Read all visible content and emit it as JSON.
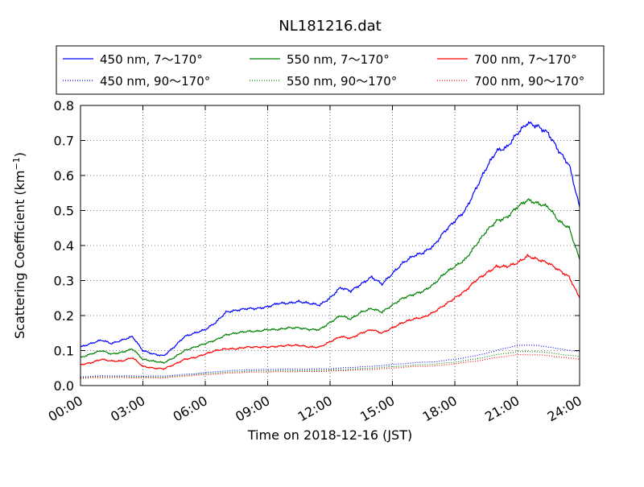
{
  "chart_data": {
    "type": "line",
    "title": "NL181216.dat",
    "xlabel": "Time on 2018-12-16 (JST)",
    "ylabel": "Scattering Coefficient (km",
    "ylabel_sup": "−1",
    "ylabel_close": ")",
    "xlim": [
      0,
      24
    ],
    "ylim": [
      0.0,
      0.8
    ],
    "grid": true,
    "legend_position": "top",
    "x_ticks": [
      {
        "value": 0,
        "label": "00:00"
      },
      {
        "value": 3,
        "label": "03:00"
      },
      {
        "value": 6,
        "label": "06:00"
      },
      {
        "value": 9,
        "label": "09:00"
      },
      {
        "value": 12,
        "label": "12:00"
      },
      {
        "value": 15,
        "label": "15:00"
      },
      {
        "value": 18,
        "label": "18:00"
      },
      {
        "value": 21,
        "label": "21:00"
      },
      {
        "value": 24,
        "label": "24:00"
      }
    ],
    "y_ticks": [
      {
        "value": 0.0,
        "label": "0.0"
      },
      {
        "value": 0.1,
        "label": "0.1"
      },
      {
        "value": 0.2,
        "label": "0.2"
      },
      {
        "value": 0.3,
        "label": "0.3"
      },
      {
        "value": 0.4,
        "label": "0.4"
      },
      {
        "value": 0.5,
        "label": "0.5"
      },
      {
        "value": 0.6,
        "label": "0.6"
      },
      {
        "value": 0.7,
        "label": "0.7"
      },
      {
        "value": 0.8,
        "label": "0.8"
      }
    ],
    "series": [
      {
        "name": "450 nm, 7～170°",
        "color": "#0000ff",
        "style": "solid",
        "x": [
          0,
          0.5,
          1,
          1.5,
          2,
          2.5,
          3,
          3.5,
          4,
          4.5,
          5,
          5.5,
          6,
          6.5,
          7,
          7.5,
          8,
          8.5,
          9,
          9.5,
          10,
          10.5,
          11,
          11.5,
          12,
          12.5,
          13,
          13.5,
          14,
          14.5,
          15,
          15.5,
          16,
          16.5,
          17,
          17.5,
          18,
          18.5,
          19,
          19.5,
          20,
          20.5,
          21,
          21.5,
          22,
          22.5,
          23,
          23.5,
          24
        ],
        "y": [
          0.11,
          0.12,
          0.13,
          0.12,
          0.13,
          0.14,
          0.1,
          0.09,
          0.085,
          0.11,
          0.14,
          0.15,
          0.16,
          0.18,
          0.21,
          0.215,
          0.22,
          0.22,
          0.225,
          0.235,
          0.235,
          0.24,
          0.235,
          0.23,
          0.25,
          0.28,
          0.27,
          0.29,
          0.31,
          0.29,
          0.32,
          0.35,
          0.37,
          0.38,
          0.4,
          0.44,
          0.47,
          0.5,
          0.56,
          0.62,
          0.67,
          0.68,
          0.72,
          0.75,
          0.74,
          0.72,
          0.67,
          0.63,
          0.51
        ]
      },
      {
        "name": "550 nm, 7～170°",
        "color": "#008000",
        "style": "solid",
        "x": [
          0,
          0.5,
          1,
          1.5,
          2,
          2.5,
          3,
          3.5,
          4,
          4.5,
          5,
          5.5,
          6,
          6.5,
          7,
          7.5,
          8,
          8.5,
          9,
          9.5,
          10,
          10.5,
          11,
          11.5,
          12,
          12.5,
          13,
          13.5,
          14,
          14.5,
          15,
          15.5,
          16,
          16.5,
          17,
          17.5,
          18,
          18.5,
          19,
          19.5,
          20,
          20.5,
          21,
          21.5,
          22,
          22.5,
          23,
          23.5,
          24
        ],
        "y": [
          0.08,
          0.09,
          0.1,
          0.09,
          0.095,
          0.105,
          0.075,
          0.07,
          0.065,
          0.08,
          0.1,
          0.11,
          0.12,
          0.13,
          0.145,
          0.15,
          0.155,
          0.155,
          0.16,
          0.16,
          0.165,
          0.165,
          0.16,
          0.16,
          0.18,
          0.2,
          0.19,
          0.21,
          0.22,
          0.21,
          0.23,
          0.25,
          0.26,
          0.27,
          0.29,
          0.32,
          0.34,
          0.36,
          0.4,
          0.44,
          0.47,
          0.48,
          0.51,
          0.53,
          0.52,
          0.51,
          0.47,
          0.45,
          0.36
        ]
      },
      {
        "name": "700 nm, 7～170°",
        "color": "#ff0000",
        "style": "solid",
        "x": [
          0,
          0.5,
          1,
          1.5,
          2,
          2.5,
          3,
          3.5,
          4,
          4.5,
          5,
          5.5,
          6,
          6.5,
          7,
          7.5,
          8,
          8.5,
          9,
          9.5,
          10,
          10.5,
          11,
          11.5,
          12,
          12.5,
          13,
          13.5,
          14,
          14.5,
          15,
          15.5,
          16,
          16.5,
          17,
          17.5,
          18,
          18.5,
          19,
          19.5,
          20,
          20.5,
          21,
          21.5,
          22,
          22.5,
          23,
          23.5,
          24
        ],
        "y": [
          0.06,
          0.065,
          0.075,
          0.07,
          0.07,
          0.08,
          0.055,
          0.05,
          0.048,
          0.06,
          0.075,
          0.08,
          0.09,
          0.1,
          0.105,
          0.105,
          0.11,
          0.11,
          0.11,
          0.112,
          0.115,
          0.115,
          0.11,
          0.11,
          0.125,
          0.14,
          0.135,
          0.15,
          0.16,
          0.15,
          0.165,
          0.18,
          0.19,
          0.195,
          0.21,
          0.23,
          0.25,
          0.27,
          0.3,
          0.32,
          0.34,
          0.34,
          0.35,
          0.37,
          0.36,
          0.35,
          0.33,
          0.31,
          0.25
        ]
      },
      {
        "name": "450 nm, 90～170°",
        "color": "#0000ff",
        "style": "dotted",
        "x": [
          0,
          1,
          2,
          3,
          4,
          5,
          6,
          7,
          8,
          9,
          10,
          11,
          12,
          13,
          14,
          15,
          16,
          17,
          18,
          19,
          20,
          21,
          22,
          23,
          24
        ],
        "y": [
          0.025,
          0.028,
          0.028,
          0.027,
          0.027,
          0.032,
          0.037,
          0.042,
          0.045,
          0.046,
          0.047,
          0.047,
          0.048,
          0.052,
          0.055,
          0.06,
          0.065,
          0.068,
          0.075,
          0.085,
          0.1,
          0.115,
          0.115,
          0.105,
          0.097
        ]
      },
      {
        "name": "550 nm, 90～170°",
        "color": "#008000",
        "style": "dotted",
        "x": [
          0,
          1,
          2,
          3,
          4,
          5,
          6,
          7,
          8,
          9,
          10,
          11,
          12,
          13,
          14,
          15,
          16,
          17,
          18,
          19,
          20,
          21,
          22,
          23,
          24
        ],
        "y": [
          0.023,
          0.025,
          0.025,
          0.024,
          0.024,
          0.029,
          0.034,
          0.038,
          0.041,
          0.042,
          0.043,
          0.043,
          0.044,
          0.047,
          0.05,
          0.054,
          0.058,
          0.061,
          0.067,
          0.076,
          0.088,
          0.097,
          0.097,
          0.09,
          0.083
        ]
      },
      {
        "name": "700 nm, 90～170°",
        "color": "#ff0000",
        "style": "dotted",
        "x": [
          0,
          1,
          2,
          3,
          4,
          5,
          6,
          7,
          8,
          9,
          10,
          11,
          12,
          13,
          14,
          15,
          16,
          17,
          18,
          19,
          20,
          21,
          22,
          23,
          24
        ],
        "y": [
          0.021,
          0.023,
          0.023,
          0.022,
          0.022,
          0.027,
          0.031,
          0.035,
          0.038,
          0.039,
          0.04,
          0.04,
          0.041,
          0.044,
          0.046,
          0.05,
          0.054,
          0.056,
          0.062,
          0.07,
          0.08,
          0.088,
          0.088,
          0.082,
          0.075
        ]
      }
    ]
  }
}
